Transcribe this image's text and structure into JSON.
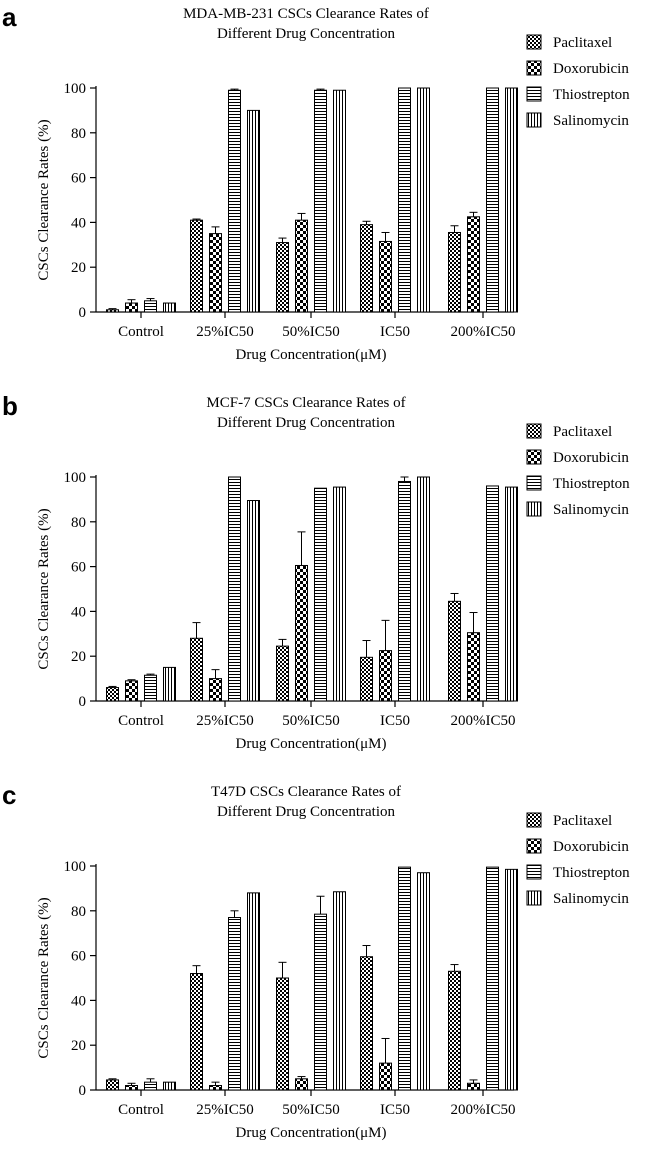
{
  "figure": {
    "series_names": [
      "Paclitaxel",
      "Doxorubicin",
      "Thiostrepton",
      "Salinomycin"
    ],
    "colors": {
      "ink": "#000000",
      "background": "#ffffff"
    }
  },
  "chart_data": [
    {
      "type": "bar",
      "panel_label": "a",
      "title": "MDA-MB-231 CSCs Clearance Rates of\nDifferent Drug Concentration",
      "xlabel": "Drug Concentration(μM)",
      "ylabel": "CSCs Clearance Rates (%)",
      "ylim": [
        0,
        100
      ],
      "yticks": [
        0,
        20,
        40,
        60,
        80,
        100
      ],
      "categories": [
        "Control",
        "25%IC50",
        "50%IC50",
        "IC50",
        "200%IC50"
      ],
      "legend_position": "right",
      "series": [
        {
          "name": "Paclitaxel",
          "pattern": "checker-fine",
          "values": [
            1,
            41,
            31,
            39,
            35.5
          ],
          "errors": [
            0.5,
            0.5,
            2,
            1.5,
            3
          ]
        },
        {
          "name": "Doxorubicin",
          "pattern": "checker-coarse",
          "values": [
            4,
            35,
            41,
            31.5,
            42.5
          ],
          "errors": [
            1.5,
            3,
            3,
            4,
            2
          ]
        },
        {
          "name": "Thiostrepton",
          "pattern": "horizontal-lines",
          "values": [
            5,
            99,
            99,
            100,
            100
          ],
          "errors": [
            1,
            0.5,
            0.5,
            0,
            0
          ]
        },
        {
          "name": "Salinomycin",
          "pattern": "vertical-lines",
          "values": [
            4,
            90,
            99,
            100,
            100
          ],
          "errors": [
            0,
            0,
            0,
            0,
            0
          ]
        }
      ]
    },
    {
      "type": "bar",
      "panel_label": "b",
      "title": "MCF-7 CSCs Clearance Rates of\nDifferent Drug Concentration",
      "xlabel": "Drug Concentration(μM)",
      "ylabel": "CSCs Clearance Rates (%)",
      "ylim": [
        0,
        100
      ],
      "yticks": [
        0,
        20,
        40,
        60,
        80,
        100
      ],
      "categories": [
        "Control",
        "25%IC50",
        "50%IC50",
        "IC50",
        "200%IC50"
      ],
      "legend_position": "right",
      "series": [
        {
          "name": "Paclitaxel",
          "pattern": "checker-fine",
          "values": [
            6,
            28,
            24.5,
            19.5,
            44.5
          ],
          "errors": [
            0.5,
            7,
            3,
            7.5,
            3.5
          ]
        },
        {
          "name": "Doxorubicin",
          "pattern": "checker-coarse",
          "values": [
            9,
            10,
            60.5,
            22.5,
            30.5
          ],
          "errors": [
            0.5,
            4,
            15,
            13.5,
            9
          ]
        },
        {
          "name": "Thiostrepton",
          "pattern": "horizontal-lines",
          "values": [
            11.5,
            100,
            95,
            98,
            96
          ],
          "errors": [
            0.5,
            0,
            0,
            2,
            0
          ]
        },
        {
          "name": "Salinomycin",
          "pattern": "vertical-lines",
          "values": [
            15,
            89.5,
            95.5,
            100,
            95.5
          ],
          "errors": [
            0,
            0,
            0,
            0,
            0
          ]
        }
      ]
    },
    {
      "type": "bar",
      "panel_label": "c",
      "title": "T47D CSCs Clearance Rates of\nDifferent Drug Concentration",
      "xlabel": "Drug Concentration(μM)",
      "ylabel": "CSCs Clearance Rates (%)",
      "ylim": [
        0,
        100
      ],
      "yticks": [
        0,
        20,
        40,
        60,
        80,
        100
      ],
      "categories": [
        "Control",
        "25%IC50",
        "50%IC50",
        "IC50",
        "200%IC50"
      ],
      "legend_position": "right",
      "series": [
        {
          "name": "Paclitaxel",
          "pattern": "checker-fine",
          "values": [
            4.5,
            52,
            50,
            59.5,
            53
          ],
          "errors": [
            0.5,
            3.5,
            7,
            5,
            3
          ]
        },
        {
          "name": "Doxorubicin",
          "pattern": "checker-coarse",
          "values": [
            2,
            2,
            5,
            12,
            3
          ],
          "errors": [
            1,
            1.5,
            1,
            11,
            1.5
          ]
        },
        {
          "name": "Thiostrepton",
          "pattern": "horizontal-lines",
          "values": [
            3.5,
            77,
            78.5,
            99.5,
            99.5
          ],
          "errors": [
            1.5,
            3,
            8,
            0,
            0
          ]
        },
        {
          "name": "Salinomycin",
          "pattern": "vertical-lines",
          "values": [
            3.5,
            88,
            88.5,
            97,
            98.5
          ],
          "errors": [
            0,
            0,
            0,
            0,
            0
          ]
        }
      ]
    }
  ]
}
